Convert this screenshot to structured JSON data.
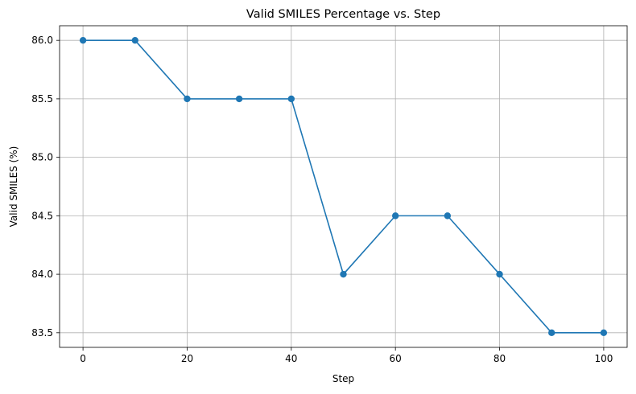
{
  "chart_data": {
    "type": "line",
    "title": "Valid SMILES Percentage vs. Step",
    "xlabel": "Step",
    "ylabel": "Valid SMILES (%)",
    "xlim": [
      -4.5,
      104.5
    ],
    "ylim": [
      83.375,
      86.125
    ],
    "xticks": [
      0,
      20,
      40,
      60,
      80,
      100
    ],
    "yticks": [
      83.5,
      84.0,
      84.5,
      85.0,
      85.5,
      86.0
    ],
    "ytick_labels": [
      "83.5",
      "84.0",
      "84.5",
      "85.0",
      "85.5",
      "86.0"
    ],
    "grid": true,
    "series": [
      {
        "color": "#1f77b4",
        "marker": "circle",
        "x": [
          0,
          10,
          20,
          30,
          40,
          50,
          60,
          70,
          80,
          90,
          100
        ],
        "y": [
          86.0,
          86.0,
          85.5,
          85.5,
          85.5,
          84.0,
          84.5,
          84.5,
          84.0,
          83.5,
          83.5
        ]
      }
    ]
  }
}
